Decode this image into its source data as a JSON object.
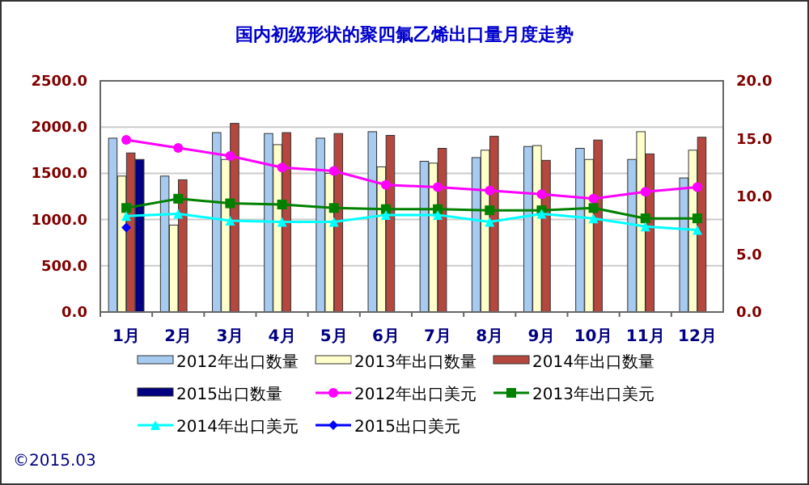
{
  "chart_data": {
    "type": "bar",
    "title": "国内初级形状的聚四氟乙烯出口量月度走势",
    "categories": [
      "1月",
      "2月",
      "3月",
      "4月",
      "5月",
      "6月",
      "7月",
      "8月",
      "9月",
      "10月",
      "11月",
      "12月"
    ],
    "series": [
      {
        "name": "2012年出口数量",
        "type": "bar",
        "color": "#a6caf0",
        "values": [
          1880,
          1470,
          1940,
          1930,
          1880,
          1950,
          1630,
          1670,
          1790,
          1770,
          1650,
          1450
        ]
      },
      {
        "name": "2013年出口数量",
        "type": "bar",
        "color": "#ffffcc",
        "values": [
          1470,
          940,
          1650,
          1810,
          1500,
          1570,
          1610,
          1750,
          1800,
          1650,
          1950,
          1750
        ]
      },
      {
        "name": "2014年出口数量",
        "type": "bar",
        "color": "#b5473f",
        "values": [
          1720,
          1430,
          2040,
          1940,
          1930,
          1910,
          1770,
          1900,
          1640,
          1860,
          1710,
          1890
        ]
      },
      {
        "name": "2015出口数量",
        "type": "bar",
        "color": "#000080",
        "values": [
          1650,
          null,
          null,
          null,
          null,
          null,
          null,
          null,
          null,
          null,
          null,
          null
        ]
      },
      {
        "name": "2012年出口美元",
        "type": "line",
        "axis": "y2",
        "marker": "circle",
        "color": "#ff00ff",
        "values": [
          14.9,
          14.2,
          13.5,
          12.5,
          12.2,
          11.0,
          10.8,
          10.5,
          10.2,
          9.8,
          10.4,
          10.8
        ]
      },
      {
        "name": "2013年出口美元",
        "type": "line",
        "axis": "y2",
        "marker": "square",
        "color": "#008000",
        "values": [
          9.0,
          9.8,
          9.4,
          9.3,
          9.0,
          8.9,
          8.9,
          8.8,
          8.8,
          9.0,
          8.1,
          8.1
        ]
      },
      {
        "name": "2014年出口美元",
        "type": "line",
        "axis": "y2",
        "marker": "triangle",
        "color": "#00ffff",
        "values": [
          8.3,
          8.5,
          7.9,
          7.8,
          7.8,
          8.4,
          8.4,
          7.8,
          8.5,
          8.1,
          7.4,
          7.1
        ]
      },
      {
        "name": "2015出口美元",
        "type": "line",
        "axis": "y2",
        "marker": "diamond",
        "color": "#0000ff",
        "values": [
          7.3,
          null,
          null,
          null,
          null,
          null,
          null,
          null,
          null,
          null,
          null,
          null
        ]
      }
    ],
    "ylim": [
      0,
      2500
    ],
    "yticks": [
      {
        "value": 0,
        "label": "0.0"
      },
      {
        "value": 500,
        "label": "500.0"
      },
      {
        "value": 1000,
        "label": "1000.0"
      },
      {
        "value": 1500,
        "label": "1500.0"
      },
      {
        "value": 2000,
        "label": "2000.0"
      },
      {
        "value": 2500,
        "label": "2500.0"
      }
    ],
    "y2lim": [
      0,
      20
    ],
    "y2ticks": [
      {
        "value": 0,
        "label": "0.0"
      },
      {
        "value": 5,
        "label": "5.0"
      },
      {
        "value": 10,
        "label": "10.0"
      },
      {
        "value": 15,
        "label": "15.0"
      },
      {
        "value": 20,
        "label": "20.0"
      }
    ],
    "grid": "y",
    "legend": "bottom",
    "annotations": [
      "©2015.03"
    ]
  }
}
